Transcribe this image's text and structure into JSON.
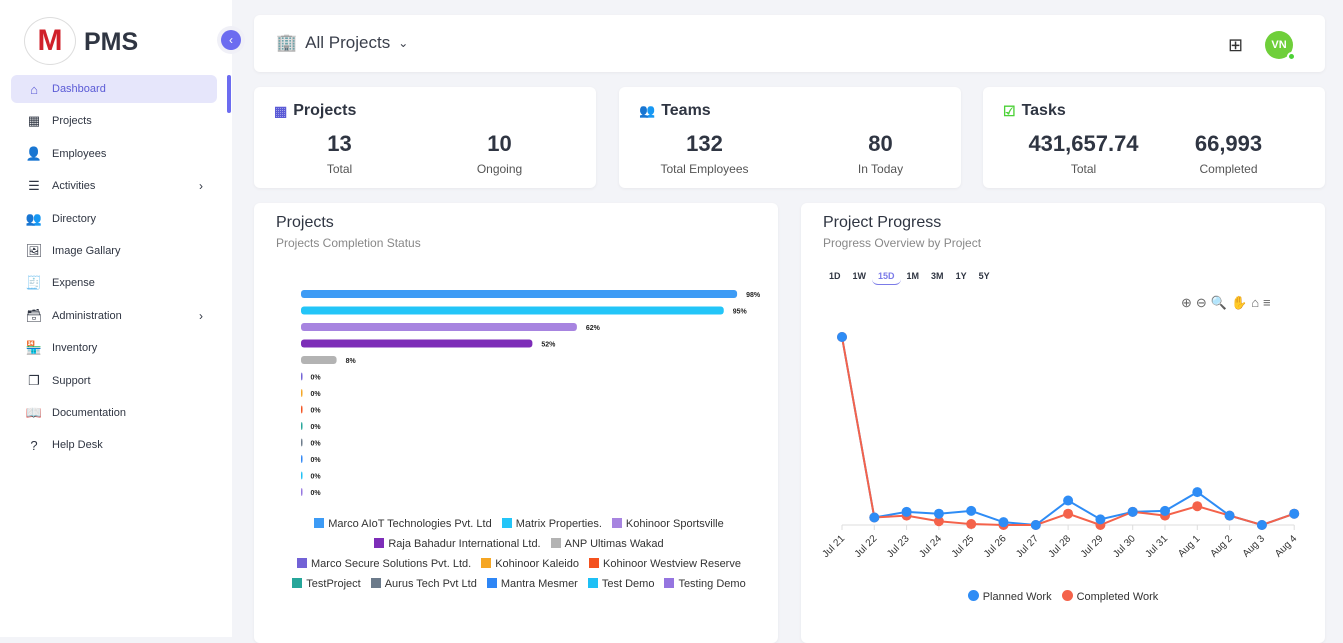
{
  "brand": {
    "name": "PMS",
    "logo_letter": "M"
  },
  "sidebar": {
    "items": [
      {
        "label": "Dashboard",
        "icon": "home-icon",
        "active": true
      },
      {
        "label": "Projects",
        "icon": "building-icon"
      },
      {
        "label": "Employees",
        "icon": "user-icon"
      },
      {
        "label": "Activities",
        "icon": "list-icon",
        "has_children": true
      },
      {
        "label": "Directory",
        "icon": "users-icon"
      },
      {
        "label": "Image Gallary",
        "icon": "image-icon"
      },
      {
        "label": "Expense",
        "icon": "receipt-icon"
      },
      {
        "label": "Administration",
        "icon": "archive-icon",
        "has_children": true
      },
      {
        "label": "Inventory",
        "icon": "store-icon"
      },
      {
        "label": "Support",
        "icon": "copy-icon"
      },
      {
        "label": "Documentation",
        "icon": "book-icon"
      },
      {
        "label": "Help Desk",
        "icon": "question-icon"
      }
    ]
  },
  "header": {
    "title": "All Projects",
    "avatar": "VN"
  },
  "stats": {
    "projects": {
      "title": "Projects",
      "total": "13",
      "total_label": "Total",
      "ongoing": "10",
      "ongoing_label": "Ongoing",
      "color": "#5b5bd6"
    },
    "teams": {
      "title": "Teams",
      "total": "132",
      "total_label": "Total Employees",
      "today": "80",
      "today_label": "In Today",
      "color": "#f5a623"
    },
    "tasks": {
      "title": "Tasks",
      "total": "431,657.74",
      "total_label": "Total",
      "completed": "66,993",
      "completed_label": "Completed",
      "color": "#4cd137"
    }
  },
  "chart_data": [
    {
      "type": "bar",
      "orientation": "horizontal",
      "title": "Projects",
      "subtitle": "Projects Completion Status",
      "categories": [
        "Marco AIoT Technologies Pvt. Ltd",
        "Matrix Properties.",
        "Kohinoor Sportsville",
        "Raja Bahadur International Ltd.",
        "ANP Ultimas Wakad",
        "Marco Secure Solutions Pvt. Ltd.",
        "Kohinoor Kaleido",
        "Kohinoor Westview Reserve",
        "TestProject",
        "Aurus Tech Pvt Ltd",
        "Mantra Mesmer",
        "Test Demo",
        "Testing Demo"
      ],
      "values": [
        98,
        95,
        62,
        52,
        8,
        0,
        0,
        0,
        0,
        0,
        0,
        0,
        0
      ],
      "labels": [
        "98%",
        "95%",
        "62%",
        "52%",
        "8%",
        "0%",
        "0%",
        "0%",
        "0%",
        "0%",
        "0%",
        "0%",
        "0%"
      ],
      "colors": [
        "#3d9bf5",
        "#23c5f8",
        "#a784e0",
        "#7d2db8",
        "#b3b3b3",
        "#7262d6",
        "#f5a623",
        "#f4511e",
        "#26a69a",
        "#6b7a8a",
        "#2e86f5",
        "#1ec0f5",
        "#9575e0"
      ],
      "xlim": [
        0,
        100
      ],
      "legend": "bottom"
    },
    {
      "type": "line",
      "title": "Project Progress",
      "subtitle": "Progress Overview by Project",
      "ranges": [
        "1D",
        "1W",
        "15D",
        "1M",
        "3M",
        "1Y",
        "5Y"
      ],
      "selected_range": "15D",
      "x": [
        "Jul 21",
        "Jul 22",
        "Jul 23",
        "Jul 24",
        "Jul 25",
        "Jul 26",
        "Jul 27",
        "Jul 28",
        "Jul 29",
        "Jul 30",
        "Jul 31",
        "Aug 1",
        "Aug 2",
        "Aug 3",
        "Aug 4"
      ],
      "series": [
        {
          "name": "Planned Work",
          "color": "#2e8cf5",
          "values": [
            100,
            4,
            7,
            6,
            7.5,
            1.5,
            0,
            13,
            3,
            7,
            7.5,
            17.5,
            5,
            0,
            6
          ]
        },
        {
          "name": "Completed Work",
          "color": "#f4624a",
          "values": [
            100,
            4,
            5,
            2,
            0.5,
            0,
            0,
            6,
            0,
            7,
            5,
            10,
            5,
            0,
            6
          ]
        }
      ],
      "ylim": [
        0,
        100
      ],
      "grid": false,
      "legend": "bottom"
    }
  ]
}
